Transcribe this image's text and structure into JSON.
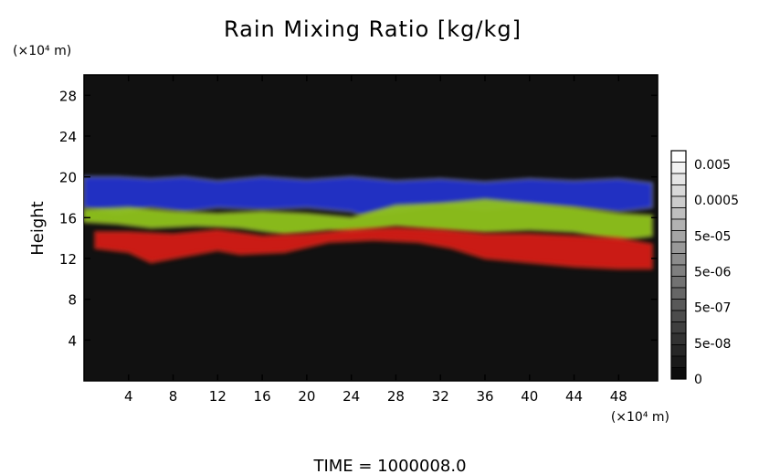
{
  "chart_data": {
    "type": "heatmap",
    "title": "Rain Mixing Ratio [kg/kg]",
    "ylabel": "Height",
    "y_unit_label": "(×10⁴ m)",
    "x_unit_label": "(×10⁴ m)",
    "xlim": [
      0,
      51.5
    ],
    "ylim": [
      0,
      30
    ],
    "x_ticks": [
      4,
      8,
      12,
      16,
      20,
      24,
      28,
      32,
      36,
      40,
      44,
      48
    ],
    "y_ticks": [
      4,
      8,
      12,
      16,
      20,
      24,
      28
    ],
    "colorbar": {
      "labels": [
        "0.005",
        "0.0005",
        "5e-05",
        "5e-06",
        "5e-07",
        "5e-08",
        "0"
      ],
      "levels": 20
    },
    "background_color": "#111111",
    "bands": [
      {
        "layer": "upper",
        "color": "#2233cc",
        "highlight": "#b8b8dd",
        "outline": [
          [
            0,
            20
          ],
          [
            3,
            20
          ],
          [
            6,
            19.8
          ],
          [
            9,
            20
          ],
          [
            12,
            19.6
          ],
          [
            16,
            20
          ],
          [
            20,
            19.7
          ],
          [
            24,
            20
          ],
          [
            28,
            19.6
          ],
          [
            32,
            19.8
          ],
          [
            36,
            19.5
          ],
          [
            40,
            19.8
          ],
          [
            44,
            19.6
          ],
          [
            48,
            19.8
          ],
          [
            51,
            19.4
          ],
          [
            51,
            17
          ],
          [
            48,
            16.6
          ],
          [
            44,
            17
          ],
          [
            40,
            17.2
          ],
          [
            36,
            16.8
          ],
          [
            32,
            17.2
          ],
          [
            28,
            16.6
          ],
          [
            25,
            16.2
          ],
          [
            24,
            16.6
          ],
          [
            20,
            17
          ],
          [
            16,
            16.8
          ],
          [
            12,
            17
          ],
          [
            9,
            16.6
          ],
          [
            6,
            17
          ],
          [
            3,
            16.4
          ],
          [
            0,
            17
          ]
        ]
      },
      {
        "layer": "middle",
        "color": "#8fc21e",
        "highlight": "#c8e04a",
        "outline": [
          [
            0,
            16.8
          ],
          [
            4,
            17
          ],
          [
            8,
            16.6
          ],
          [
            12,
            16.4
          ],
          [
            16,
            16.6
          ],
          [
            20,
            16.4
          ],
          [
            24,
            16
          ],
          [
            28,
            17.2
          ],
          [
            32,
            17.4
          ],
          [
            36,
            17.8
          ],
          [
            40,
            17.4
          ],
          [
            44,
            17
          ],
          [
            48,
            16.4
          ],
          [
            51,
            16.2
          ],
          [
            51,
            14.2
          ],
          [
            48,
            13.8
          ],
          [
            44,
            14.6
          ],
          [
            40,
            14.8
          ],
          [
            36,
            14.6
          ],
          [
            32,
            14.8
          ],
          [
            28,
            15.2
          ],
          [
            24,
            14.6
          ],
          [
            22,
            14.8
          ],
          [
            18,
            14.4
          ],
          [
            14,
            15
          ],
          [
            10,
            15.2
          ],
          [
            6,
            15
          ],
          [
            3,
            15.4
          ],
          [
            0,
            15.6
          ]
        ]
      },
      {
        "layer": "lower",
        "color": "#d41a12",
        "highlight": "#f03a22",
        "outline": [
          [
            1,
            14.6
          ],
          [
            4,
            14.6
          ],
          [
            8,
            14.4
          ],
          [
            12,
            14.8
          ],
          [
            16,
            14.2
          ],
          [
            20,
            14.4
          ],
          [
            24,
            14.8
          ],
          [
            28,
            15
          ],
          [
            32,
            14.8
          ],
          [
            36,
            14.4
          ],
          [
            40,
            14.4
          ],
          [
            44,
            14.2
          ],
          [
            48,
            14
          ],
          [
            51,
            13.4
          ],
          [
            51,
            11
          ],
          [
            48,
            11
          ],
          [
            44,
            11.2
          ],
          [
            40,
            11.6
          ],
          [
            36,
            12
          ],
          [
            33,
            13
          ],
          [
            30,
            13.6
          ],
          [
            26,
            13.8
          ],
          [
            22,
            13.6
          ],
          [
            18,
            12.6
          ],
          [
            14,
            12.4
          ],
          [
            12,
            12.8
          ],
          [
            9,
            12.2
          ],
          [
            6,
            11.6
          ],
          [
            4,
            12.6
          ],
          [
            1,
            13
          ]
        ]
      }
    ]
  },
  "footer": {
    "time_label": "TIME = 1000008.0"
  }
}
